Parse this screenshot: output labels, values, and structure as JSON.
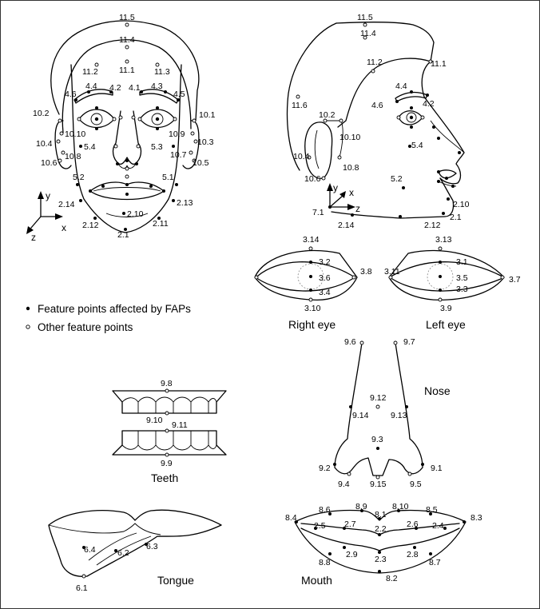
{
  "legend": {
    "affected": "Feature points affected by FAPs",
    "other": "Other feature points"
  },
  "captions": {
    "right_eye": "Right eye",
    "left_eye": "Left eye",
    "nose": "Nose",
    "teeth": "Teeth",
    "tongue": "Tongue",
    "mouth": "Mouth"
  },
  "axes": {
    "x": "x",
    "y": "y",
    "z": "z"
  },
  "labels": {
    "front": [
      "11.5",
      "11.4",
      "11.2",
      "11.1",
      "11.3",
      "4.4",
      "4.2",
      "4.1",
      "4.3",
      "4.6",
      "4.5",
      "10.2",
      "10.1",
      "10.10",
      "10.9",
      "10.4",
      "5.4",
      "5.3",
      "10.3",
      "10.8",
      "10.7",
      "10.6",
      "10.5",
      "5.2",
      "5.1",
      "2.14",
      "2.10",
      "2.13",
      "2.12",
      "2.11",
      "2.1"
    ],
    "profile": [
      "11.5",
      "11.4",
      "11.2",
      "11.1",
      "4.4",
      "4.6",
      "4.2",
      "11.6",
      "10.2",
      "10.10",
      "5.4",
      "10.4",
      "10.8",
      "10.6",
      "5.2",
      "7.1",
      "2.10",
      "2.14",
      "2.12",
      "2.1"
    ],
    "right_eye": [
      "3.14",
      "3.2",
      "3.6",
      "3.8",
      "3.4",
      "3.10"
    ],
    "left_eye": [
      "3.13",
      "3.11",
      "3.1",
      "3.5",
      "3.7",
      "3.3",
      "3.9"
    ],
    "nose": [
      "9.6",
      "9.7",
      "9.12",
      "9.14",
      "9.13",
      "9.3",
      "9.2",
      "9.1",
      "9.4",
      "9.15",
      "9.5"
    ],
    "teeth": [
      "9.8",
      "9.10",
      "9.11",
      "9.9"
    ],
    "tongue": [
      "6.4",
      "6.2",
      "6.3",
      "6.1"
    ],
    "mouth": [
      "8.4",
      "8.6",
      "8.9",
      "8.1",
      "8.10",
      "8.5",
      "8.3",
      "2.5",
      "2.7",
      "2.2",
      "2.6",
      "2.4",
      "8.8",
      "2.9",
      "2.3",
      "2.8",
      "8.7",
      "8.2"
    ]
  }
}
